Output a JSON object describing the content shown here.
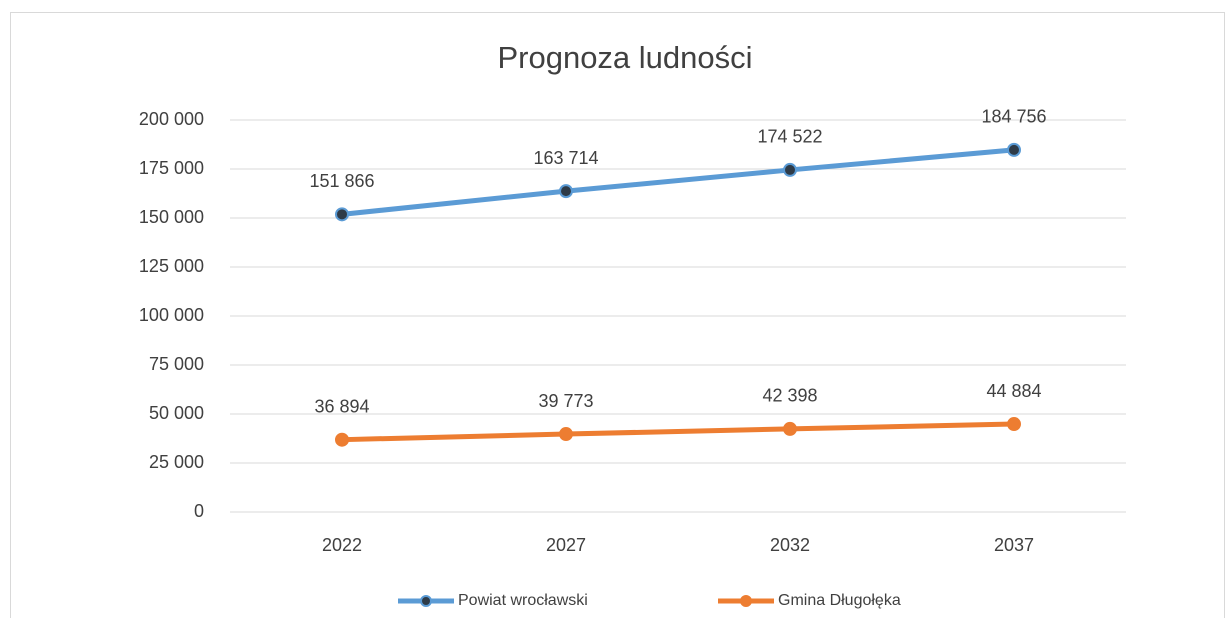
{
  "chart_data": {
    "type": "line",
    "title": "Prognoza ludności",
    "categories": [
      "2022",
      "2027",
      "2032",
      "2037"
    ],
    "series": [
      {
        "name": "Powiat wrocławski",
        "color": "#5b9bd5",
        "marker_color": "#2e3b48",
        "values": [
          151866,
          163714,
          174522,
          184756
        ],
        "value_labels": [
          "151 866",
          "163 714",
          "174 522",
          "184 756"
        ]
      },
      {
        "name": "Gmina Długołęka",
        "color": "#ed7d31",
        "marker_color": "#ed7d31",
        "values": [
          36894,
          39773,
          42398,
          44884
        ],
        "value_labels": [
          "36 894",
          "39 773",
          "42 398",
          "44 884"
        ]
      }
    ],
    "ylim": [
      0,
      200000
    ],
    "yticks": [
      0,
      {
        "value": 25000,
        "label": "25 000"
      },
      {
        "value": 50000,
        "label": "50 000"
      },
      {
        "value": 75000,
        "label": "75 000"
      },
      {
        "value": 100000,
        "label": "100 000"
      },
      {
        "value": 125000,
        "label": "125 000"
      },
      {
        "value": 150000,
        "label": "150 000"
      },
      {
        "value": 175000,
        "label": "175 000"
      },
      {
        "value": 200000,
        "label": "200 000"
      }
    ],
    "grid": true,
    "legend": "bottom"
  }
}
